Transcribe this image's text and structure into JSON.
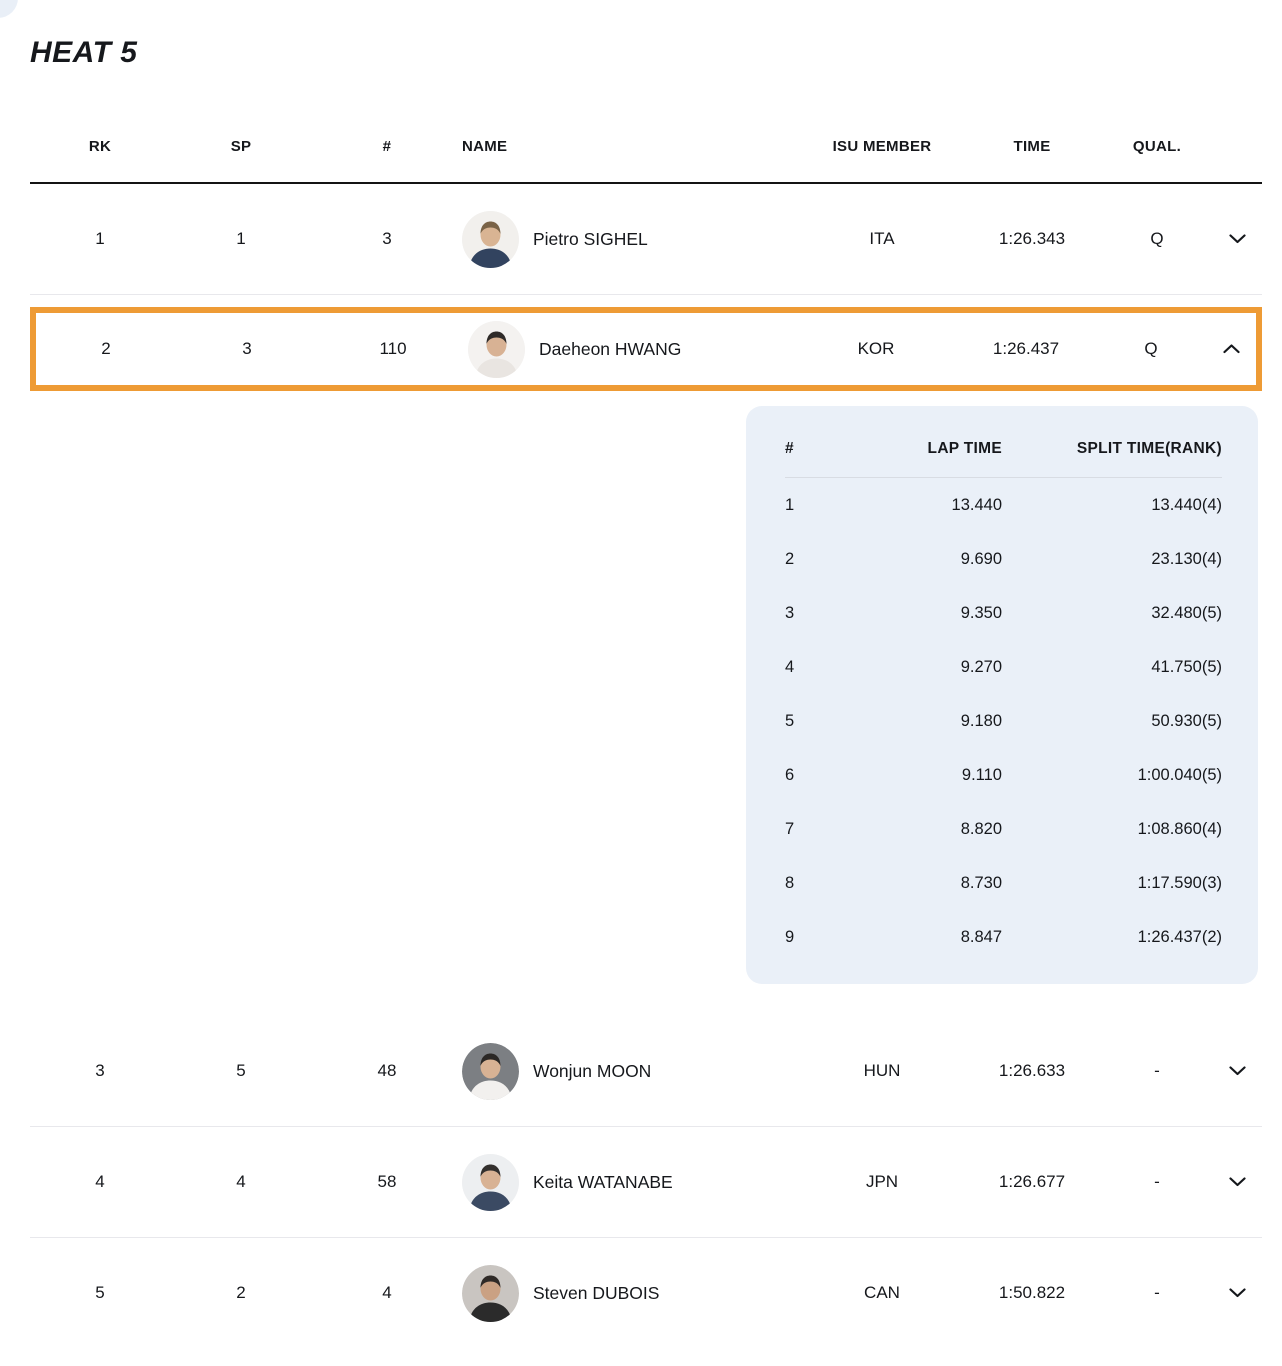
{
  "title": "HEAT 5",
  "accent_color": "#EE9B35",
  "panel_bg": "#EAF0F8",
  "columns": {
    "rk": "RK",
    "sp": "SP",
    "num": "#",
    "name": "NAME",
    "isu": "ISU MEMBER",
    "time": "TIME",
    "qual": "QUAL."
  },
  "lap_columns": {
    "num": "#",
    "lap": "LAP TIME",
    "split": "SPLIT TIME(RANK)"
  },
  "rows": [
    {
      "rk": "1",
      "sp": "1",
      "num": "3",
      "name": "Pietro SIGHEL",
      "isu": "ITA",
      "time": "1:26.343",
      "qual": "Q",
      "expanded": false,
      "highlighted": false,
      "avatar": {
        "bg": "#f2f0ed",
        "skin": "#d9b493",
        "hair": "#7a6347",
        "shirt": "#32435f"
      }
    },
    {
      "rk": "2",
      "sp": "3",
      "num": "110",
      "name": "Daeheon HWANG",
      "isu": "KOR",
      "time": "1:26.437",
      "qual": "Q",
      "expanded": true,
      "highlighted": true,
      "avatar": {
        "bg": "#f4f2f0",
        "skin": "#d8b294",
        "hair": "#2e2a28",
        "shirt": "#e9e5e1"
      },
      "laps": [
        {
          "n": "1",
          "lap": "13.440",
          "split": "13.440(4)"
        },
        {
          "n": "2",
          "lap": "9.690",
          "split": "23.130(4)"
        },
        {
          "n": "3",
          "lap": "9.350",
          "split": "32.480(5)"
        },
        {
          "n": "4",
          "lap": "9.270",
          "split": "41.750(5)"
        },
        {
          "n": "5",
          "lap": "9.180",
          "split": "50.930(5)"
        },
        {
          "n": "6",
          "lap": "9.110",
          "split": "1:00.040(5)"
        },
        {
          "n": "7",
          "lap": "8.820",
          "split": "1:08.860(4)"
        },
        {
          "n": "8",
          "lap": "8.730",
          "split": "1:17.590(3)"
        },
        {
          "n": "9",
          "lap": "8.847",
          "split": "1:26.437(2)"
        }
      ]
    },
    {
      "rk": "3",
      "sp": "5",
      "num": "48",
      "name": "Wonjun MOON",
      "isu": "HUN",
      "time": "1:26.633",
      "qual": "-",
      "expanded": false,
      "highlighted": false,
      "avatar": {
        "bg": "#7c7f83",
        "skin": "#d8b294",
        "hair": "#2b2826",
        "shirt": "#f2f0ee"
      }
    },
    {
      "rk": "4",
      "sp": "4",
      "num": "58",
      "name": "Keita WATANABE",
      "isu": "JPN",
      "time": "1:26.677",
      "qual": "-",
      "expanded": false,
      "highlighted": false,
      "avatar": {
        "bg": "#edeff1",
        "skin": "#d8b294",
        "hair": "#33302e",
        "shirt": "#3b4a63"
      }
    },
    {
      "rk": "5",
      "sp": "2",
      "num": "4",
      "name": "Steven DUBOIS",
      "isu": "CAN",
      "time": "1:50.822",
      "qual": "-",
      "expanded": false,
      "highlighted": false,
      "avatar": {
        "bg": "#c9c5c1",
        "skin": "#caa183",
        "hair": "#2f2a27",
        "shirt": "#2b2b2b"
      }
    }
  ]
}
